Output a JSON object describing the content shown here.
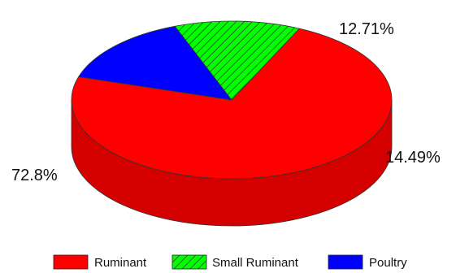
{
  "chart_data": {
    "type": "pie",
    "style": "3d",
    "title": "",
    "slices": [
      {
        "name": "Ruminant",
        "value": 72.8,
        "label": "72.8%",
        "color": "#ff0000",
        "side_color": "#d40000",
        "pattern": "solid"
      },
      {
        "name": "Small Ruminant",
        "value": 12.71,
        "label": "12.71%",
        "color": "#00ff00",
        "side_color": "#00c800",
        "pattern": "diagonal-hatch"
      },
      {
        "name": "Poultry",
        "value": 14.49,
        "label": "14.49%",
        "color": "#0000ff",
        "side_color": "#0000c0",
        "pattern": "solid"
      }
    ],
    "legend_position": "bottom",
    "legend": [
      "Ruminant",
      "Small Ruminant",
      "Poultry"
    ]
  }
}
